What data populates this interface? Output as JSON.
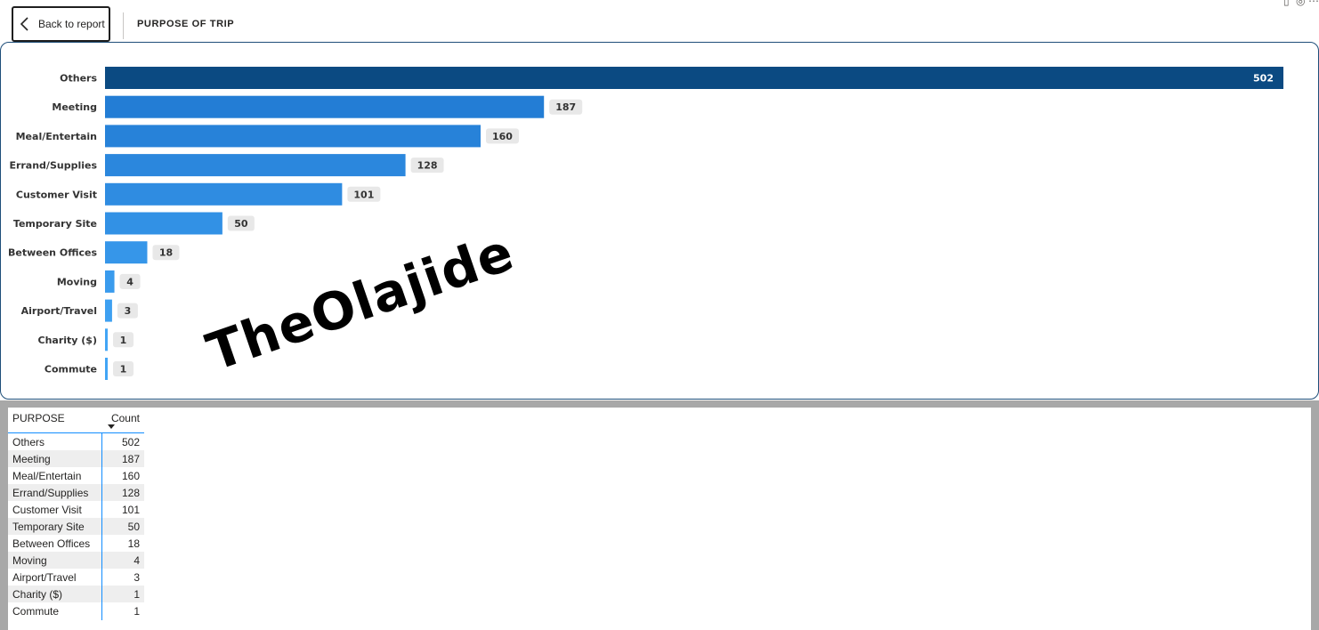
{
  "header": {
    "back_label": "Back to report",
    "title": "PURPOSE OF TRIP"
  },
  "icons": {
    "back": "chevron-left-icon",
    "pin": "pin-icon",
    "focus": "focus-mode-icon",
    "more": "more-options-icon"
  },
  "chart_data": {
    "type": "bar",
    "orientation": "horizontal",
    "categories": [
      "Others",
      "Meeting",
      "Meal/Entertain",
      "Errand/Supplies",
      "Customer Visit",
      "Temporary Site",
      "Between Offices",
      "Moving",
      "Airport/Travel",
      "Charity ($)",
      "Commute"
    ],
    "values": [
      502,
      187,
      160,
      128,
      101,
      50,
      18,
      4,
      3,
      1,
      1
    ],
    "xlim": [
      0,
      502
    ],
    "grid": false,
    "data_labels": true,
    "colors": {
      "max": "#0b4a82",
      "high": "#1f78d1",
      "low": "#42a5f5",
      "label_bg": "#e8e8e8",
      "label_text": "#333333"
    }
  },
  "watermark": "TheOlajide",
  "table": {
    "columns": [
      "PURPOSE",
      "Count"
    ],
    "rows": [
      [
        "Others",
        "502"
      ],
      [
        "Meeting",
        "187"
      ],
      [
        "Meal/Entertain",
        "160"
      ],
      [
        "Errand/Supplies",
        "128"
      ],
      [
        "Customer Visit",
        "101"
      ],
      [
        "Temporary Site",
        "50"
      ],
      [
        "Between Offices",
        "18"
      ],
      [
        "Moving",
        "4"
      ],
      [
        "Airport/Travel",
        "3"
      ],
      [
        "Charity ($)",
        "1"
      ],
      [
        "Commute",
        "1"
      ]
    ]
  }
}
